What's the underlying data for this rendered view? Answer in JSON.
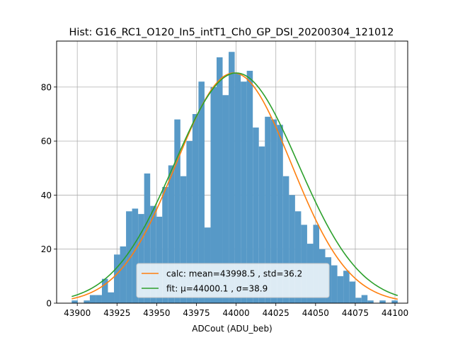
{
  "chart_data": {
    "type": "bar",
    "title": "Hist: G16_RC1_O120_In5_intT1_Ch0_GP_DSI_20200304_121012",
    "xlabel": "ADCout (ADU_beb)",
    "ylabel": "",
    "xlim": [
      43887,
      44108
    ],
    "ylim": [
      0,
      97
    ],
    "grid": true,
    "xticks": [
      43900,
      43925,
      43950,
      43975,
      44000,
      44025,
      44050,
      44075,
      44100
    ],
    "yticks": [
      0,
      20,
      40,
      60,
      80
    ],
    "bin_edges": [
      43896.5,
      43900.3,
      43904.1,
      43907.9,
      43911.7,
      43915.5,
      43919.3,
      43923.1,
      43926.9,
      43930.7,
      43934.5,
      43938.3,
      43942.1,
      43945.9,
      43949.7,
      43953.5,
      43957.3,
      43961.1,
      43964.9,
      43968.7,
      43972.5,
      43976.3,
      43980.1,
      43983.9,
      43987.7,
      43991.5,
      43995.3,
      43999.1,
      44002.9,
      44006.7,
      44010.5,
      44014.3,
      44018.1,
      44021.9,
      44025.7,
      44029.5,
      44033.3,
      44037.1,
      44040.9,
      44044.7,
      44048.5,
      44052.3,
      44056.1,
      44059.9,
      44063.7,
      44067.5,
      44071.3,
      44075.1,
      44078.9,
      44082.7,
      44086.5,
      44090.3,
      44094.1,
      44097.9,
      44101.7
    ],
    "counts": [
      1,
      0,
      1,
      3,
      3,
      9,
      4,
      18,
      21,
      34,
      35,
      33,
      48,
      36,
      32,
      43,
      51,
      68,
      47,
      60,
      70,
      82,
      28,
      80,
      91,
      77,
      93,
      85,
      82,
      86,
      65,
      58,
      69,
      68,
      66,
      47,
      40,
      34,
      29,
      22,
      29,
      20,
      17,
      14,
      10,
      12,
      8,
      2,
      3,
      1,
      0,
      1,
      0,
      1
    ],
    "bar_color": "#5799c7",
    "series": [
      {
        "name": "calc: mean=43998.5 , std=36.2",
        "kind": "gaussian",
        "mean": 43998.5,
        "std": 36.2,
        "amplitude": 85.2,
        "x_range": [
          43896.5,
          44101.7
        ],
        "color": "#ff7f0e"
      },
      {
        "name": "fit: μ=44000.1 , σ=38.9",
        "kind": "gaussian",
        "mean": 44000.1,
        "std": 38.9,
        "amplitude": 85.2,
        "x_range": [
          43896.5,
          44101.7
        ],
        "color": "#2ca02c"
      }
    ],
    "legend_position": "lower center"
  }
}
